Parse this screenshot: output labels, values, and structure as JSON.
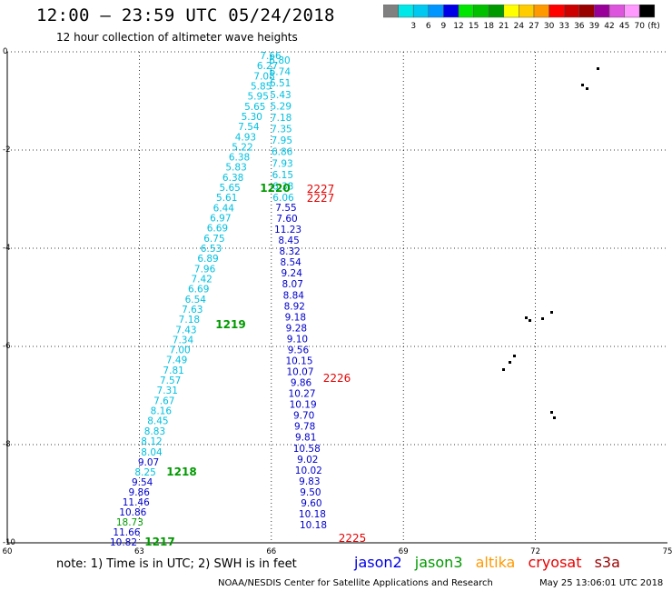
{
  "header": {
    "title": "12:00 – 23:59 UTC 05/24/2018",
    "subtitle": "12 hour collection of altimeter wave heights"
  },
  "legend": {
    "unit": "(ft)",
    "bins": [
      {
        "label": "",
        "color": "#808080"
      },
      {
        "label": "3",
        "color": "#00e8e8"
      },
      {
        "label": "6",
        "color": "#00c8f0"
      },
      {
        "label": "9",
        "color": "#0096ff"
      },
      {
        "label": "12",
        "color": "#0000e6"
      },
      {
        "label": "15",
        "color": "#00e600"
      },
      {
        "label": "18",
        "color": "#00c000"
      },
      {
        "label": "21",
        "color": "#009a00"
      },
      {
        "label": "24",
        "color": "#ffff00"
      },
      {
        "label": "27",
        "color": "#ffcc00"
      },
      {
        "label": "30",
        "color": "#ff9900"
      },
      {
        "label": "33",
        "color": "#ff0000"
      },
      {
        "label": "36",
        "color": "#cc0000"
      },
      {
        "label": "39",
        "color": "#990000"
      },
      {
        "label": "42",
        "color": "#990099"
      },
      {
        "label": "45",
        "color": "#dd55dd"
      },
      {
        "label": "70",
        "color": "#ff99ff"
      },
      {
        "label": "",
        "color": "#000000"
      }
    ]
  },
  "map": {
    "lon_ticks": [
      "60",
      "63",
      "66",
      "69",
      "72",
      "75"
    ],
    "lat_ticks": [
      "0",
      "-2",
      "-4",
      "-6",
      "-8",
      "-10"
    ],
    "tracks": {
      "cyan": [
        "7.66",
        "6.27",
        "7.08",
        "5.85",
        "5.95",
        "5.65",
        "5.30",
        "7.54",
        "4.93",
        "5.22",
        "6.38",
        "5.83",
        "6.38",
        "5.65",
        "5.61",
        "6.44",
        "6.97",
        "6.69",
        "6.75",
        "6.53",
        "6.89",
        "7.96",
        "7.42",
        "6.69",
        "6.54",
        "7.63",
        "7.18",
        "7.43",
        "7.34",
        "7.00",
        "7.49",
        "7.81",
        "7.57",
        "7.31",
        "7.67",
        "8.16",
        "8.45",
        "8.83",
        "8.12"
      ],
      "mid": [
        "6.80",
        "6.74",
        "6.51",
        "5.43",
        "5.29",
        "7.18",
        "7.35",
        "7.95",
        "6.86",
        "7.93",
        "6.15",
        "6.38",
        "6.06"
      ],
      "blue": [
        "7.55",
        "7.60",
        "11.23",
        "8.45",
        "8.32",
        "8.54",
        "9.24",
        "8.07",
        "8.84",
        "8.92",
        "9.18",
        "9.28",
        "9.10",
        "9.56",
        "10.15",
        "10.07",
        "9.86",
        "10.27",
        "10.19",
        "9.70",
        "9.78",
        "9.81",
        "10.58",
        "9.02",
        "10.02",
        "9.83",
        "9.50",
        "9.60",
        "10.18",
        "10.18"
      ],
      "southwest": [
        "8.04",
        "9.07",
        "8.25",
        "9.54",
        "9.86",
        "11.46",
        "10.86",
        "18.73",
        "11.66",
        "10.82"
      ]
    },
    "pass_labels": {
      "jason3": [
        "1220",
        "1219",
        "1218",
        "1217"
      ],
      "cryosat": [
        "2227",
        "2227",
        "2226",
        "2225"
      ]
    }
  },
  "footer": {
    "note": "note: 1) Time is in UTC; 2) SWH is in feet",
    "credit": "NOAA/NESDIS Center for Satellite Applications and Research",
    "timestamp": "May 25 13:06:01 UTC 2018"
  },
  "satellites": [
    {
      "name": "jason2",
      "color": "#0000e6"
    },
    {
      "name": "jason3",
      "color": "#009a00"
    },
    {
      "name": "altika",
      "color": "#ff9900"
    },
    {
      "name": "cryosat",
      "color": "#e60000"
    },
    {
      "name": "s3a",
      "color": "#990000"
    }
  ]
}
